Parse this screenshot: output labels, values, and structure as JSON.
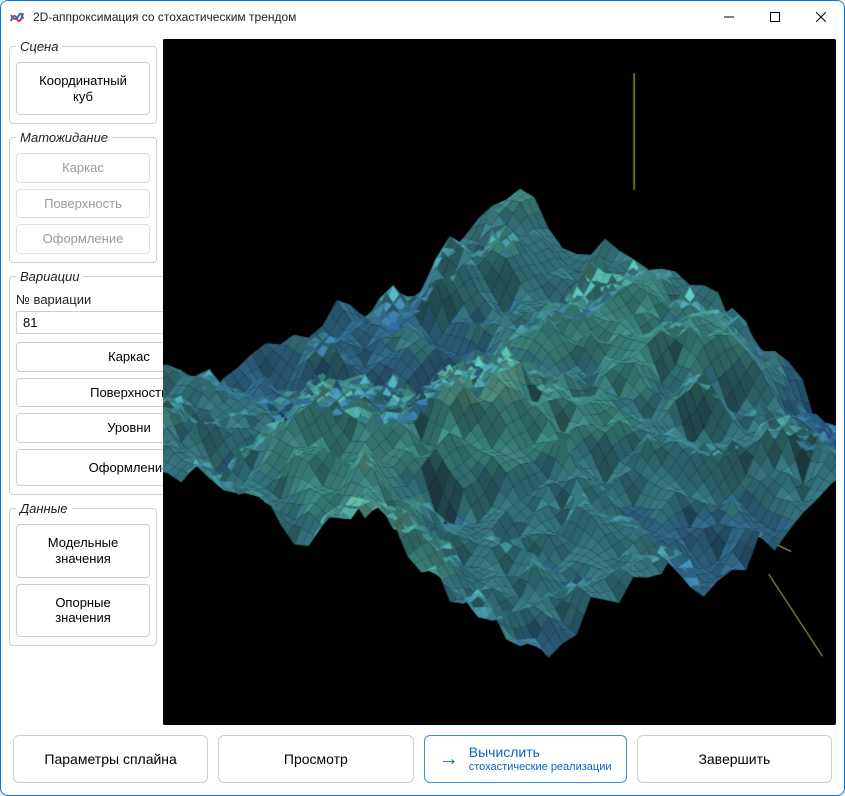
{
  "window": {
    "title": "2D-аппроксимация со стохастическим трендом"
  },
  "sidebar": {
    "scene": {
      "legend": "Сцена",
      "coord_cube": "Координатный\nкуб"
    },
    "expectation": {
      "legend": "Матожидание",
      "wireframe": "Каркас",
      "surface": "Поверхность",
      "design": "Оформление"
    },
    "variations": {
      "legend": "Вариации",
      "index_label": "№ вариации",
      "index_value": "81",
      "wireframe": "Каркас",
      "surface": "Поверхность",
      "levels": "Уровни",
      "design": "Оформление"
    },
    "data": {
      "legend": "Данные",
      "model_values": "Модельные\nзначения",
      "ref_values": "Опорные\nзначения"
    }
  },
  "bottombar": {
    "spline_params": "Параметры сплайна",
    "view": "Просмотр",
    "compute": {
      "main": "Вычислить",
      "sub": "стохастические реализации"
    },
    "finish": "Завершить"
  },
  "viewport": {
    "type": "3d-surface",
    "description": "terrain-like stochastic surface with elevation color bands",
    "background_color": "#000000",
    "axis_line_color": "#d8d85a",
    "color_bands": [
      "#2b5fc4",
      "#3f7fd6",
      "#4c9fd0",
      "#56b9c8",
      "#5fcec3",
      "#7de0c7",
      "#b5ecc8"
    ],
    "camera": {
      "azimuth_deg": 225,
      "elevation_deg": 32
    },
    "grid_resolution": 180,
    "roughness": 0.75,
    "z_range": [
      -1.0,
      1.0
    ]
  }
}
